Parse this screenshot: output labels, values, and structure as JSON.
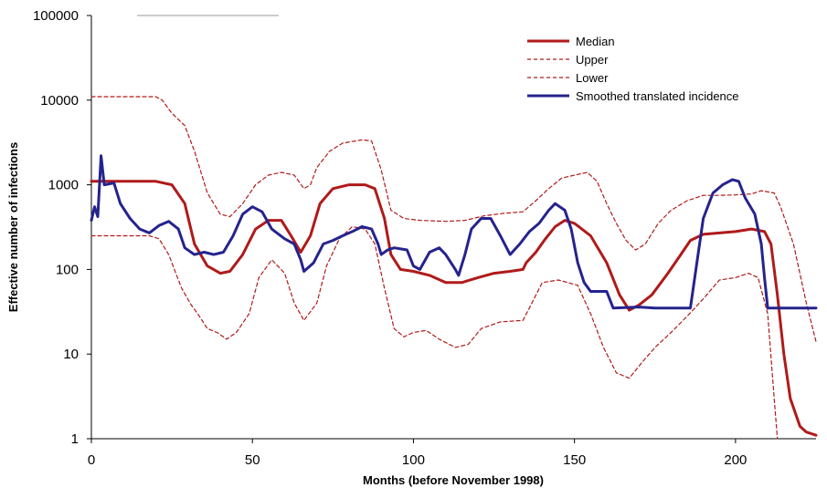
{
  "chart_data": {
    "type": "line",
    "title": "",
    "xlabel": "Months (before November 1998)",
    "ylabel": "Effective number of infections",
    "xlim": [
      0,
      225
    ],
    "ylim": [
      1,
      100000
    ],
    "yscale": "log",
    "x_ticks": [
      0,
      50,
      100,
      150,
      200
    ],
    "y_ticks": [
      1,
      10,
      100,
      1000,
      10000,
      100000
    ],
    "x_tick_labels": [
      "0",
      "50",
      "100",
      "150",
      "200"
    ],
    "y_tick_labels": [
      "1",
      "10",
      "100",
      "1000",
      "10000",
      "100000"
    ],
    "grid": false,
    "legend_position": "top-right",
    "series": [
      {
        "name": "Median",
        "color": "#b01a1a",
        "style": "solid-thick",
        "points": [
          [
            0,
            1100
          ],
          [
            20,
            1100
          ],
          [
            25,
            1000
          ],
          [
            29,
            600
          ],
          [
            32,
            200
          ],
          [
            36,
            110
          ],
          [
            40,
            90
          ],
          [
            43,
            95
          ],
          [
            47,
            150
          ],
          [
            51,
            300
          ],
          [
            55,
            380
          ],
          [
            59,
            380
          ],
          [
            62,
            250
          ],
          [
            65,
            160
          ],
          [
            68,
            250
          ],
          [
            71,
            600
          ],
          [
            75,
            900
          ],
          [
            80,
            1000
          ],
          [
            85,
            1000
          ],
          [
            88,
            900
          ],
          [
            91,
            400
          ],
          [
            93,
            150
          ],
          [
            96,
            100
          ],
          [
            100,
            95
          ],
          [
            105,
            85
          ],
          [
            110,
            70
          ],
          [
            115,
            70
          ],
          [
            120,
            80
          ],
          [
            125,
            90
          ],
          [
            130,
            95
          ],
          [
            134,
            100
          ],
          [
            135,
            120
          ],
          [
            138,
            160
          ],
          [
            141,
            230
          ],
          [
            144,
            320
          ],
          [
            147,
            380
          ],
          [
            150,
            350
          ],
          [
            155,
            250
          ],
          [
            160,
            120
          ],
          [
            164,
            50
          ],
          [
            167,
            33
          ],
          [
            170,
            38
          ],
          [
            174,
            50
          ],
          [
            179,
            90
          ],
          [
            183,
            150
          ],
          [
            186,
            220
          ],
          [
            190,
            260
          ],
          [
            195,
            270
          ],
          [
            200,
            280
          ],
          [
            205,
            300
          ],
          [
            209,
            280
          ],
          [
            211,
            200
          ],
          [
            213,
            50
          ],
          [
            215,
            10
          ],
          [
            217,
            3
          ],
          [
            220,
            1.4
          ],
          [
            222,
            1.2
          ],
          [
            225,
            1.1
          ]
        ]
      },
      {
        "name": "Upper",
        "color": "#b01a1a",
        "style": "dashed",
        "points": [
          [
            0,
            11000
          ],
          [
            20,
            11000
          ],
          [
            22,
            10000
          ],
          [
            25,
            7000
          ],
          [
            29,
            5000
          ],
          [
            32,
            2500
          ],
          [
            36,
            800
          ],
          [
            40,
            450
          ],
          [
            43,
            420
          ],
          [
            47,
            600
          ],
          [
            51,
            1000
          ],
          [
            55,
            1300
          ],
          [
            59,
            1400
          ],
          [
            63,
            1300
          ],
          [
            66,
            900
          ],
          [
            68,
            1000
          ],
          [
            70,
            1600
          ],
          [
            74,
            2500
          ],
          [
            78,
            3100
          ],
          [
            84,
            3400
          ],
          [
            87,
            3300
          ],
          [
            90,
            1500
          ],
          [
            93,
            500
          ],
          [
            97,
            400
          ],
          [
            102,
            380
          ],
          [
            110,
            370
          ],
          [
            116,
            380
          ],
          [
            122,
            430
          ],
          [
            128,
            460
          ],
          [
            134,
            480
          ],
          [
            138,
            650
          ],
          [
            142,
            900
          ],
          [
            146,
            1200
          ],
          [
            150,
            1300
          ],
          [
            154,
            1400
          ],
          [
            157,
            1100
          ],
          [
            160,
            600
          ],
          [
            163,
            350
          ],
          [
            166,
            220
          ],
          [
            169,
            170
          ],
          [
            172,
            200
          ],
          [
            176,
            350
          ],
          [
            180,
            500
          ],
          [
            185,
            650
          ],
          [
            190,
            750
          ],
          [
            195,
            750
          ],
          [
            200,
            760
          ],
          [
            205,
            780
          ],
          [
            208,
            850
          ],
          [
            212,
            800
          ],
          [
            214,
            550
          ],
          [
            218,
            200
          ],
          [
            222,
            40
          ],
          [
            225,
            14
          ]
        ]
      },
      {
        "name": "Lower",
        "color": "#b01a1a",
        "style": "dashed",
        "points": [
          [
            0,
            250
          ],
          [
            18,
            250
          ],
          [
            21,
            230
          ],
          [
            24,
            150
          ],
          [
            28,
            60
          ],
          [
            31,
            38
          ],
          [
            33,
            30
          ],
          [
            36,
            20
          ],
          [
            39,
            18
          ],
          [
            42,
            15
          ],
          [
            45,
            18
          ],
          [
            49,
            30
          ],
          [
            52,
            80
          ],
          [
            56,
            130
          ],
          [
            60,
            90
          ],
          [
            63,
            40
          ],
          [
            66,
            25
          ],
          [
            70,
            40
          ],
          [
            73,
            110
          ],
          [
            77,
            230
          ],
          [
            81,
            320
          ],
          [
            85,
            300
          ],
          [
            88,
            200
          ],
          [
            91,
            60
          ],
          [
            94,
            20
          ],
          [
            97,
            16
          ],
          [
            100,
            18
          ],
          [
            104,
            19
          ],
          [
            108,
            15
          ],
          [
            113,
            12
          ],
          [
            117,
            13
          ],
          [
            121,
            20
          ],
          [
            127,
            24
          ],
          [
            134,
            25
          ],
          [
            136,
            35
          ],
          [
            140,
            70
          ],
          [
            145,
            75
          ],
          [
            148,
            70
          ],
          [
            151,
            65
          ],
          [
            155,
            30
          ],
          [
            159,
            12
          ],
          [
            163,
            6
          ],
          [
            167,
            5.2
          ],
          [
            171,
            8
          ],
          [
            175,
            12
          ],
          [
            180,
            18
          ],
          [
            185,
            28
          ],
          [
            190,
            45
          ],
          [
            195,
            75
          ],
          [
            200,
            80
          ],
          [
            204,
            90
          ],
          [
            207,
            80
          ],
          [
            210,
            30
          ],
          [
            212,
            3
          ],
          [
            213,
            1
          ]
        ]
      },
      {
        "name": "Smoothed translated incidence",
        "color": "#25238e",
        "style": "solid-thick",
        "points": [
          [
            0,
            380
          ],
          [
            1,
            550
          ],
          [
            2,
            420
          ],
          [
            3,
            2200
          ],
          [
            4,
            1000
          ],
          [
            7,
            1050
          ],
          [
            9,
            600
          ],
          [
            12,
            400
          ],
          [
            15,
            300
          ],
          [
            18,
            270
          ],
          [
            21,
            330
          ],
          [
            24,
            370
          ],
          [
            27,
            300
          ],
          [
            29,
            180
          ],
          [
            32,
            150
          ],
          [
            35,
            160
          ],
          [
            38,
            150
          ],
          [
            41,
            160
          ],
          [
            44,
            250
          ],
          [
            47,
            450
          ],
          [
            50,
            550
          ],
          [
            53,
            480
          ],
          [
            56,
            300
          ],
          [
            60,
            230
          ],
          [
            63,
            200
          ],
          [
            65,
            130
          ],
          [
            66,
            95
          ],
          [
            69,
            120
          ],
          [
            72,
            200
          ],
          [
            75,
            220
          ],
          [
            78,
            250
          ],
          [
            81,
            280
          ],
          [
            84,
            320
          ],
          [
            87,
            300
          ],
          [
            89,
            200
          ],
          [
            90,
            150
          ],
          [
            92,
            170
          ],
          [
            94,
            180
          ],
          [
            98,
            170
          ],
          [
            100,
            110
          ],
          [
            102,
            100
          ],
          [
            105,
            160
          ],
          [
            108,
            180
          ],
          [
            110,
            150
          ],
          [
            113,
            100
          ],
          [
            114,
            85
          ],
          [
            116,
            150
          ],
          [
            118,
            300
          ],
          [
            121,
            400
          ],
          [
            124,
            400
          ],
          [
            127,
            250
          ],
          [
            130,
            150
          ],
          [
            133,
            200
          ],
          [
            136,
            280
          ],
          [
            139,
            350
          ],
          [
            142,
            500
          ],
          [
            144,
            600
          ],
          [
            147,
            500
          ],
          [
            149,
            300
          ],
          [
            151,
            120
          ],
          [
            153,
            70
          ],
          [
            155,
            55
          ],
          [
            160,
            55
          ],
          [
            162,
            35
          ],
          [
            170,
            36
          ],
          [
            175,
            35
          ],
          [
            186,
            35
          ],
          [
            188,
            120
          ],
          [
            190,
            400
          ],
          [
            193,
            800
          ],
          [
            196,
            1000
          ],
          [
            199,
            1150
          ],
          [
            201,
            1100
          ],
          [
            203,
            700
          ],
          [
            206,
            450
          ],
          [
            208,
            200
          ],
          [
            209,
            80
          ],
          [
            210,
            35
          ],
          [
            225,
            35
          ]
        ]
      }
    ]
  }
}
